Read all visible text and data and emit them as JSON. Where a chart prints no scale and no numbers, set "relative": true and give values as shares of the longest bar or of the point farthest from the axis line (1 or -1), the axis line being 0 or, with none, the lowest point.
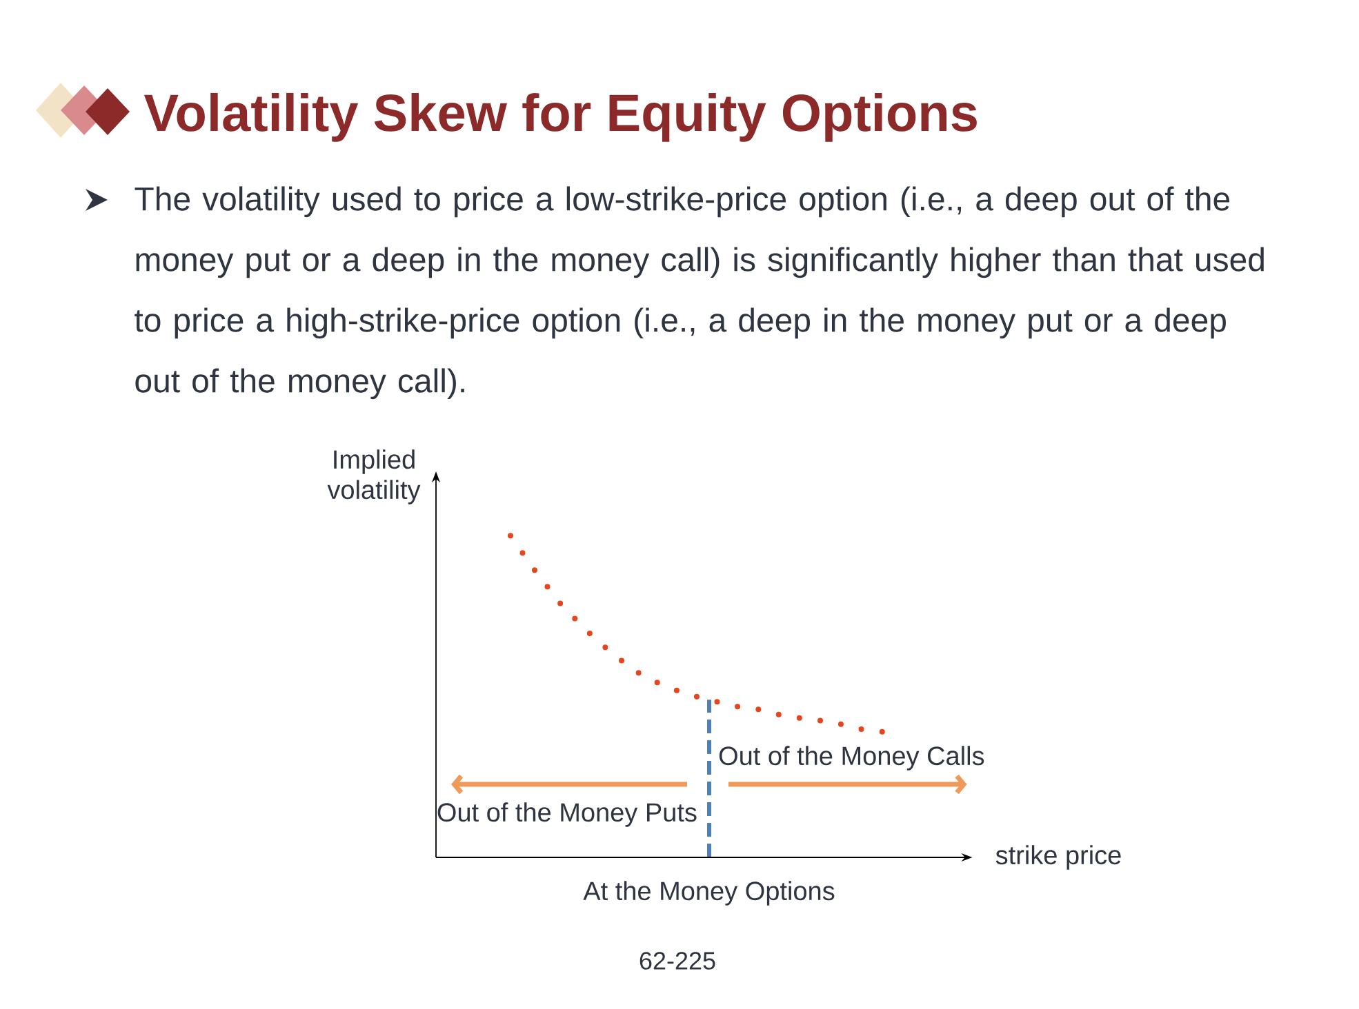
{
  "chart_data": {
    "type": "line",
    "title": "Volatility Skew for Equity Options",
    "subtitle": "The volatility used to price a low-strike-price option (i.e., a deep out of the money put or a deep in the money call) is significantly higher than that used to price a high-strike-price option (i.e., a deep in the money put or a deep out of the money call).",
    "xlabel": "strike price",
    "ylabel": "Implied volatility",
    "categories": [
      null,
      null,
      null,
      null,
      null,
      null,
      null,
      null,
      null,
      null,
      null,
      null,
      null,
      null,
      null,
      null
    ],
    "relative": true,
    "series": [
      {
        "color": "#e8441d",
        "values": [
          1.0,
          0.89,
          0.79,
          0.71,
          0.64,
          0.58,
          0.54,
          0.51,
          0.49,
          0.47,
          0.46,
          0.44,
          0.43,
          0.42,
          0.4,
          0.39
        ]
      }
    ],
    "line_style": "dotted",
    "annotations": [
      "Out of the Money Calls",
      "Out of the Money Puts",
      "At the Money Options",
      "62-225"
    ]
  }
}
